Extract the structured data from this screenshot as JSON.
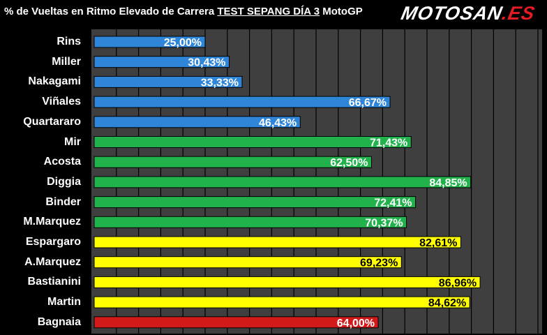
{
  "title": {
    "prefix": "% de Vueltas en Ritmo Elevado de Carrera ",
    "highlight": "TEST SEPANG DÍA 3",
    "suffix": " MotoGP"
  },
  "logo": {
    "main": "MOTOSAN",
    "tld": ".ES"
  },
  "chart_data": {
    "type": "bar",
    "orientation": "horizontal",
    "title": "% de Vueltas en Ritmo Elevado de Carrera TEST SEPANG DÍA 3 MotoGP",
    "xlim": [
      0,
      100
    ],
    "grid": true,
    "categories": [
      "Rins",
      "Miller",
      "Nakagami",
      "Viñales",
      "Quartararo",
      "Mir",
      "Acosta",
      "Diggia",
      "Binder",
      "M.Marquez",
      "Espargaro",
      "A.Marquez",
      "Bastianini",
      "Martin",
      "Bagnaia"
    ],
    "values": [
      25.0,
      30.43,
      33.33,
      66.67,
      46.43,
      71.43,
      62.5,
      84.85,
      72.41,
      70.37,
      82.61,
      69.23,
      86.96,
      84.62,
      64.0
    ],
    "value_labels": [
      "25,00%",
      "30,43%",
      "33,33%",
      "66,67%",
      "46,43%",
      "71,43%",
      "62,50%",
      "84,85%",
      "72,41%",
      "70,37%",
      "82,61%",
      "69,23%",
      "86,96%",
      "84,62%",
      "64,00%"
    ],
    "colors": [
      "#2f86d8",
      "#2f86d8",
      "#2f86d8",
      "#2f86d8",
      "#2f86d8",
      "#22b24c",
      "#22b24c",
      "#22b24c",
      "#22b24c",
      "#22b24c",
      "#ffff00",
      "#ffff00",
      "#ffff00",
      "#ffff00",
      "#d21a1a"
    ],
    "label_colors": [
      "#ffffff",
      "#ffffff",
      "#ffffff",
      "#ffffff",
      "#ffffff",
      "#ffffff",
      "#ffffff",
      "#ffffff",
      "#ffffff",
      "#ffffff",
      "#000000",
      "#000000",
      "#000000",
      "#000000",
      "#ffffff"
    ]
  }
}
